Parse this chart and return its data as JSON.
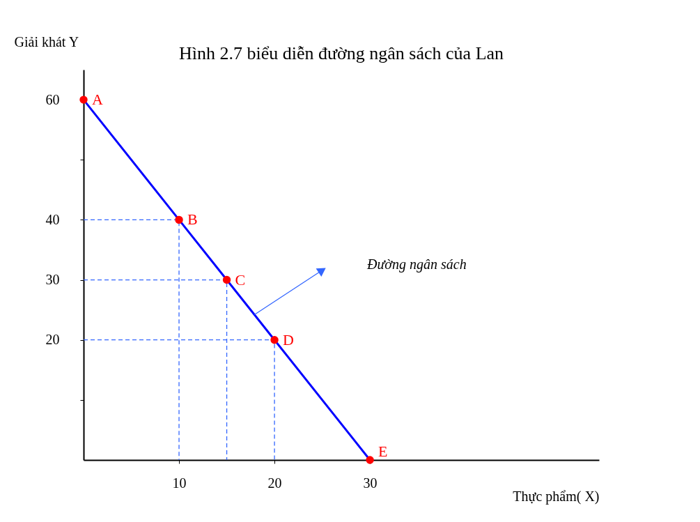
{
  "chart_data": {
    "type": "line",
    "title": "Hình 2.7 biểu diễn đường ngân sách của Lan",
    "xlabel": "Thực phẩm( X)",
    "ylabel": "Giải khát Y",
    "x": [
      0,
      10,
      15,
      20,
      30
    ],
    "series": [
      {
        "color": "#0000ff",
        "values": [
          60,
          40,
          30,
          20,
          0
        ]
      },
      {
        "color": "#3366ff",
        "line_style": "dashed",
        "x": [
          0,
          10,
          10
        ],
        "values": [
          40,
          40,
          0
        ]
      },
      {
        "color": "#3366ff",
        "line_style": "dashed",
        "x": [
          0,
          15,
          15
        ],
        "values": [
          30,
          30,
          0
        ]
      },
      {
        "color": "#3366ff",
        "line_style": "dashed",
        "x": [
          0,
          20,
          20
        ],
        "values": [
          20,
          20,
          0
        ]
      },
      {
        "color": "#3366ff",
        "x": [
          17.9,
          25
        ],
        "values": [
          24.2,
          31.6
        ]
      },
      {
        "type": "scatter",
        "color": "#ff0000",
        "values": [
          60,
          40,
          30,
          20,
          0
        ]
      }
    ],
    "xlim": [
      0,
      54
    ],
    "ylim": [
      0,
      65
    ],
    "xticks": [
      10,
      20,
      30
    ],
    "yticks": [
      {
        "value": 10,
        "label": null
      },
      20,
      30,
      40,
      {
        "value": 50,
        "label": null
      },
      60
    ],
    "grid": false,
    "annotations": [
      {
        "text": "A",
        "x": 0,
        "y": 60
      },
      {
        "text": "B",
        "x": 10,
        "y": 40
      },
      {
        "text": "C",
        "x": 15,
        "y": 30
      },
      {
        "text": "D",
        "x": 20,
        "y": 20
      },
      {
        "text": "E",
        "x": 30,
        "y": 0
      },
      "Đường ngân sách"
    ]
  }
}
